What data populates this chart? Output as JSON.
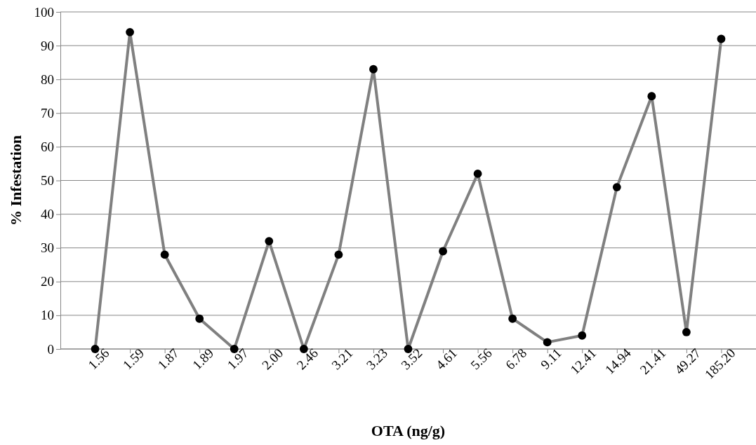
{
  "chart_data": {
    "type": "line",
    "xlabel": "OTA (ng/g)",
    "ylabel": "% Infestation",
    "categories": [
      "1.56",
      "1.59",
      "1.87",
      "1.89",
      "1.97",
      "2.00",
      "2.46",
      "3.21",
      "3.23",
      "3.52",
      "4.61",
      "5.56",
      "6.78",
      "9.11",
      "12.41",
      "14.94",
      "21.41",
      "49.27",
      "185.20"
    ],
    "series": [
      {
        "color": "#808080",
        "values": [
          0,
          94,
          28,
          9,
          0,
          32,
          0,
          28,
          83,
          0,
          29,
          52,
          9,
          2,
          4,
          48,
          75,
          5,
          92
        ]
      }
    ],
    "ylim": [
      0,
      100
    ],
    "yticks": [
      0,
      10,
      20,
      30,
      40,
      50,
      60,
      70,
      80,
      90,
      100
    ],
    "grid": "y",
    "marker": "circle",
    "line_style": "solid"
  }
}
